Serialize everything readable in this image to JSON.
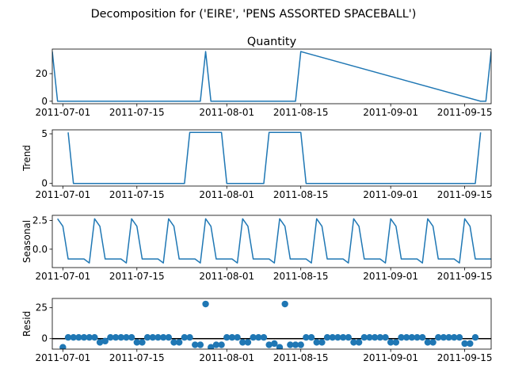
{
  "chart_data": {
    "suptitle": "Decomposition for ('EIRE', 'PENS ASSORTED SPACEBALL')",
    "x_tick_labels": [
      "2011-07-01",
      "2011-07-15",
      "2011-08-01",
      "2011-08-15",
      "2011-09-01",
      "2011-09-15"
    ],
    "x_start": "2011-06-29",
    "x_end": "2011-09-20",
    "line_color": "#1f77b4",
    "panels": [
      {
        "name": "observed",
        "type": "line",
        "title": "Quantity",
        "ylabel": "",
        "ylim": [
          -1.8,
          37.8
        ],
        "yticks": [
          0,
          20
        ],
        "dates": [
          "2011-06-29",
          "2011-06-30",
          "2011-07-27",
          "2011-07-28",
          "2011-07-29",
          "2011-08-13",
          "2011-08-14",
          "2011-08-15",
          "2011-09-18",
          "2011-09-19",
          "2011-09-20"
        ],
        "values": [
          36,
          0,
          0,
          36,
          0,
          0,
          0,
          36,
          0,
          0,
          36
        ]
      },
      {
        "name": "trend",
        "type": "line",
        "ylabel": "Trend",
        "ylim": [
          -0.26,
          5.4
        ],
        "yticks": [
          0,
          5
        ],
        "dates": [
          "2011-07-02",
          "2011-07-03",
          "2011-07-24",
          "2011-07-25",
          "2011-07-31",
          "2011-08-01",
          "2011-08-08",
          "2011-08-09",
          "2011-08-15",
          "2011-08-16",
          "2011-09-17",
          "2011-09-18"
        ],
        "values": [
          5.14,
          0,
          0,
          5.14,
          5.14,
          0,
          0,
          5.14,
          5.14,
          0,
          0,
          5.14
        ]
      },
      {
        "name": "seasonal",
        "type": "line",
        "ylabel": "Seasonal",
        "ylim": [
          -1.6,
          2.95
        ],
        "yticks": [
          0.0,
          2.5
        ],
        "tick_labels": [
          "0.0",
          "2.5"
        ],
        "weekly_pattern": [
          2.65,
          2.0,
          -0.85,
          -0.85,
          -0.85,
          -0.85,
          -1.2
        ],
        "pattern_start": "2011-06-30"
      },
      {
        "name": "resid",
        "type": "scatter",
        "ylabel": "Resid",
        "ylim": [
          -8.5,
          32.5
        ],
        "yticks": [
          0,
          25
        ],
        "zero_line": true,
        "dates": [
          "2011-07-01",
          "2011-07-02",
          "2011-07-03",
          "2011-07-04",
          "2011-07-05",
          "2011-07-06",
          "2011-07-07",
          "2011-07-08",
          "2011-07-09",
          "2011-07-10",
          "2011-07-11",
          "2011-07-12",
          "2011-07-13",
          "2011-07-14",
          "2011-07-15",
          "2011-07-16",
          "2011-07-17",
          "2011-07-18",
          "2011-07-19",
          "2011-07-20",
          "2011-07-21",
          "2011-07-22",
          "2011-07-23",
          "2011-07-24",
          "2011-07-25",
          "2011-07-26",
          "2011-07-27",
          "2011-07-28",
          "2011-07-29",
          "2011-07-30",
          "2011-07-31",
          "2011-08-01",
          "2011-08-02",
          "2011-08-03",
          "2011-08-04",
          "2011-08-05",
          "2011-08-06",
          "2011-08-07",
          "2011-08-08",
          "2011-08-09",
          "2011-08-10",
          "2011-08-11",
          "2011-08-12",
          "2011-08-13",
          "2011-08-14",
          "2011-08-15",
          "2011-08-16",
          "2011-08-17",
          "2011-08-18",
          "2011-08-19",
          "2011-08-20",
          "2011-08-21",
          "2011-08-22",
          "2011-08-23",
          "2011-08-24",
          "2011-08-25",
          "2011-08-26",
          "2011-08-27",
          "2011-08-28",
          "2011-08-29",
          "2011-08-30",
          "2011-08-31",
          "2011-09-01",
          "2011-09-02",
          "2011-09-03",
          "2011-09-04",
          "2011-09-05",
          "2011-09-06",
          "2011-09-07",
          "2011-09-08",
          "2011-09-09",
          "2011-09-10",
          "2011-09-11",
          "2011-09-12",
          "2011-09-13",
          "2011-09-14",
          "2011-09-15",
          "2011-09-16",
          "2011-09-17"
        ],
        "values": [
          -7,
          1,
          1,
          1,
          1,
          1,
          1,
          -3,
          -2,
          1,
          1,
          1,
          1,
          1,
          -3,
          -3,
          1,
          1,
          1,
          1,
          1,
          -3,
          -3,
          1,
          1,
          -5,
          -5,
          28,
          -7,
          -5,
          -5,
          1,
          1,
          1,
          -3,
          -3,
          1,
          1,
          1,
          -5,
          -4,
          -7,
          28,
          -5,
          -5,
          -5,
          1,
          1,
          -3,
          -3,
          1,
          1,
          1,
          1,
          1,
          -3,
          -3,
          1,
          1,
          1,
          1,
          1,
          -3,
          -3,
          1,
          1,
          1,
          1,
          1,
          -3,
          -3,
          1,
          1,
          1,
          1,
          1,
          -4,
          -4,
          1
        ]
      }
    ]
  }
}
